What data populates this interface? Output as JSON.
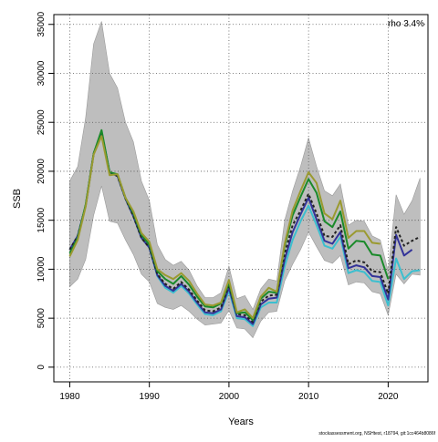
{
  "chart_data": {
    "type": "line",
    "xlabel": "Years",
    "ylabel": "SSB",
    "annotation": "rho 3.4%",
    "footer": "stockassessment.org, NSHtest, r18794, git:1cc464b8086f",
    "xlim": [
      1978,
      2025
    ],
    "ylim": [
      -1500,
      36000
    ],
    "x_ticks": [
      1980,
      1990,
      2000,
      2010,
      2020
    ],
    "y_ticks": [
      0,
      5000,
      10000,
      15000,
      20000,
      25000,
      30000,
      35000
    ],
    "grid": true,
    "confidence_band": {
      "color": "#bebebe",
      "x": [
        1980,
        1981,
        1982,
        1983,
        1984,
        1985,
        1986,
        1987,
        1988,
        1989,
        1990,
        1991,
        1992,
        1993,
        1994,
        1995,
        1996,
        1997,
        1998,
        1999,
        2000,
        2001,
        2002,
        2003,
        2004,
        2005,
        2006,
        2007,
        2008,
        2009,
        2010,
        2011,
        2012,
        2013,
        2014,
        2015,
        2016,
        2017,
        2018,
        2019,
        2020,
        2021,
        2022,
        2023,
        2024
      ],
      "upper": [
        19000,
        20500,
        25500,
        33000,
        35300,
        30000,
        28500,
        25000,
        23000,
        19000,
        17000,
        12500,
        11000,
        10400,
        10800,
        9900,
        8300,
        7100,
        7100,
        7600,
        10300,
        7000,
        7300,
        5900,
        8000,
        9000,
        8800,
        15000,
        18000,
        20500,
        23400,
        20500,
        18000,
        17500,
        18700,
        14500,
        15000,
        14900,
        13400,
        13000,
        9800,
        17600,
        15600,
        17000,
        19300
      ],
      "lower": [
        8200,
        9000,
        11000,
        15500,
        18500,
        14900,
        14700,
        13000,
        11500,
        9500,
        8700,
        6500,
        6100,
        5900,
        6300,
        5700,
        4900,
        4300,
        4400,
        4500,
        5800,
        4000,
        3900,
        3000,
        4700,
        5600,
        5700,
        8800,
        10500,
        12000,
        13800,
        12300,
        10900,
        10600,
        11400,
        8400,
        8700,
        8600,
        7700,
        7500,
        5300,
        9500,
        8500,
        9500,
        9400
      ]
    },
    "series": [
      {
        "color": "#3cbfcf",
        "x": [
          1980,
          1981,
          1982,
          1983,
          1984,
          1985,
          1986,
          1987,
          1988,
          1989,
          1990,
          1991,
          1992,
          1993,
          1994,
          1995,
          1996,
          1997,
          1998,
          1999,
          2000,
          2001,
          2002,
          2003,
          2004,
          2005,
          2006,
          2007,
          2008,
          2009,
          2010,
          2011,
          2012,
          2013,
          2014,
          2015,
          2016,
          2017,
          2018,
          2019,
          2020,
          2021,
          2022,
          2023,
          2024
        ],
        "y": [
          12000,
          13400,
          16500,
          21800,
          24000,
          19900,
          19500,
          17200,
          15400,
          13200,
          12200,
          9300,
          8100,
          7600,
          8300,
          7500,
          6400,
          5400,
          5300,
          5700,
          7800,
          5000,
          4900,
          4200,
          6100,
          6600,
          6600,
          10300,
          13000,
          14900,
          16500,
          14500,
          12400,
          12100,
          13300,
          9600,
          9900,
          9700,
          8800,
          8700,
          6300,
          11100,
          9000,
          9800,
          9900
        ]
      },
      {
        "color": "#333399",
        "x": [
          1980,
          1981,
          1982,
          1983,
          1984,
          1985,
          1986,
          1987,
          1988,
          1989,
          1990,
          1991,
          1992,
          1993,
          1994,
          1995,
          1996,
          1997,
          1998,
          1999,
          2000,
          2001,
          2002,
          2003,
          2004,
          2005,
          2006,
          2007,
          2008,
          2009,
          2010,
          2011,
          2012,
          2013,
          2014,
          2015,
          2016,
          2017,
          2018,
          2019,
          2020,
          2021,
          2022,
          2023
        ],
        "y": [
          12000,
          13400,
          16500,
          21800,
          24000,
          19900,
          19500,
          17200,
          15400,
          13200,
          12200,
          9400,
          8300,
          7800,
          8500,
          7700,
          6600,
          5600,
          5500,
          5900,
          8100,
          5200,
          5100,
          4400,
          6400,
          7000,
          7100,
          11000,
          13800,
          15600,
          17300,
          15100,
          12900,
          12600,
          13800,
          10100,
          10400,
          10200,
          9300,
          9200,
          6900,
          13500,
          11400,
          12000
        ]
      },
      {
        "color": "#222222",
        "dashed": true,
        "x": [
          1980,
          1981,
          1982,
          1983,
          1984,
          1985,
          1986,
          1987,
          1988,
          1989,
          1990,
          1991,
          1992,
          1993,
          1994,
          1995,
          1996,
          1997,
          1998,
          1999,
          2000,
          2001,
          2002,
          2003,
          2004,
          2005,
          2006,
          2007,
          2008,
          2009,
          2010,
          2011,
          2012,
          2013,
          2014,
          2015,
          2016,
          2017,
          2018,
          2019,
          2020,
          2021,
          2022,
          2023,
          2024
        ],
        "y": [
          12000,
          13400,
          16500,
          21800,
          24000,
          19900,
          19500,
          17200,
          15400,
          13200,
          12200,
          9500,
          8500,
          8000,
          8700,
          7900,
          6800,
          5800,
          5700,
          6100,
          8400,
          5400,
          5300,
          4600,
          6700,
          7300,
          7400,
          11600,
          14500,
          16000,
          17700,
          15700,
          13400,
          13300,
          14500,
          10500,
          10900,
          10700,
          9800,
          9700,
          7500,
          14300,
          12400,
          12900,
          13300
        ]
      },
      {
        "color": "#1a8a2a",
        "x": [
          1980,
          1981,
          1982,
          1983,
          1984,
          1985,
          1986,
          1987,
          1988,
          1989,
          1990,
          1991,
          1992,
          1993,
          1994,
          1995,
          1996,
          1997,
          1998,
          1999,
          2000,
          2001,
          2002,
          2003,
          2004,
          2005,
          2006,
          2007,
          2008,
          2009,
          2010,
          2011,
          2012,
          2013,
          2014,
          2015,
          2016,
          2017,
          2018,
          2019,
          2020
        ],
        "y": [
          11600,
          13200,
          16600,
          21800,
          24200,
          19900,
          19700,
          17300,
          15700,
          13500,
          12500,
          9800,
          9000,
          8500,
          9300,
          8400,
          7200,
          6200,
          6100,
          6500,
          8600,
          5500,
          5600,
          4800,
          7000,
          7700,
          7600,
          12400,
          15500,
          17400,
          19200,
          17800,
          14900,
          14300,
          15900,
          12100,
          12900,
          12800,
          11500,
          11400,
          9000
        ]
      },
      {
        "color": "#9a9a30",
        "x": [
          1980,
          1981,
          1982,
          1983,
          1984,
          1985,
          1986,
          1987,
          1988,
          1989,
          1990,
          1991,
          1992,
          1993,
          1994,
          1995,
          1996,
          1997,
          1998,
          1999,
          2000,
          2001,
          2002,
          2003,
          2004,
          2005,
          2006,
          2007,
          2008,
          2009,
          2010,
          2011,
          2012,
          2013,
          2014,
          2015,
          2016,
          2017,
          2018,
          2019
        ],
        "y": [
          11300,
          13000,
          16400,
          21700,
          23600,
          19600,
          19700,
          17300,
          15900,
          13700,
          12800,
          10000,
          9400,
          9000,
          9600,
          8800,
          7500,
          6400,
          6300,
          6600,
          8900,
          5600,
          5900,
          5000,
          7200,
          8100,
          7700,
          12600,
          16000,
          18000,
          19900,
          18800,
          15700,
          15100,
          17000,
          13200,
          13900,
          13900,
          12700,
          12600
        ]
      }
    ]
  }
}
